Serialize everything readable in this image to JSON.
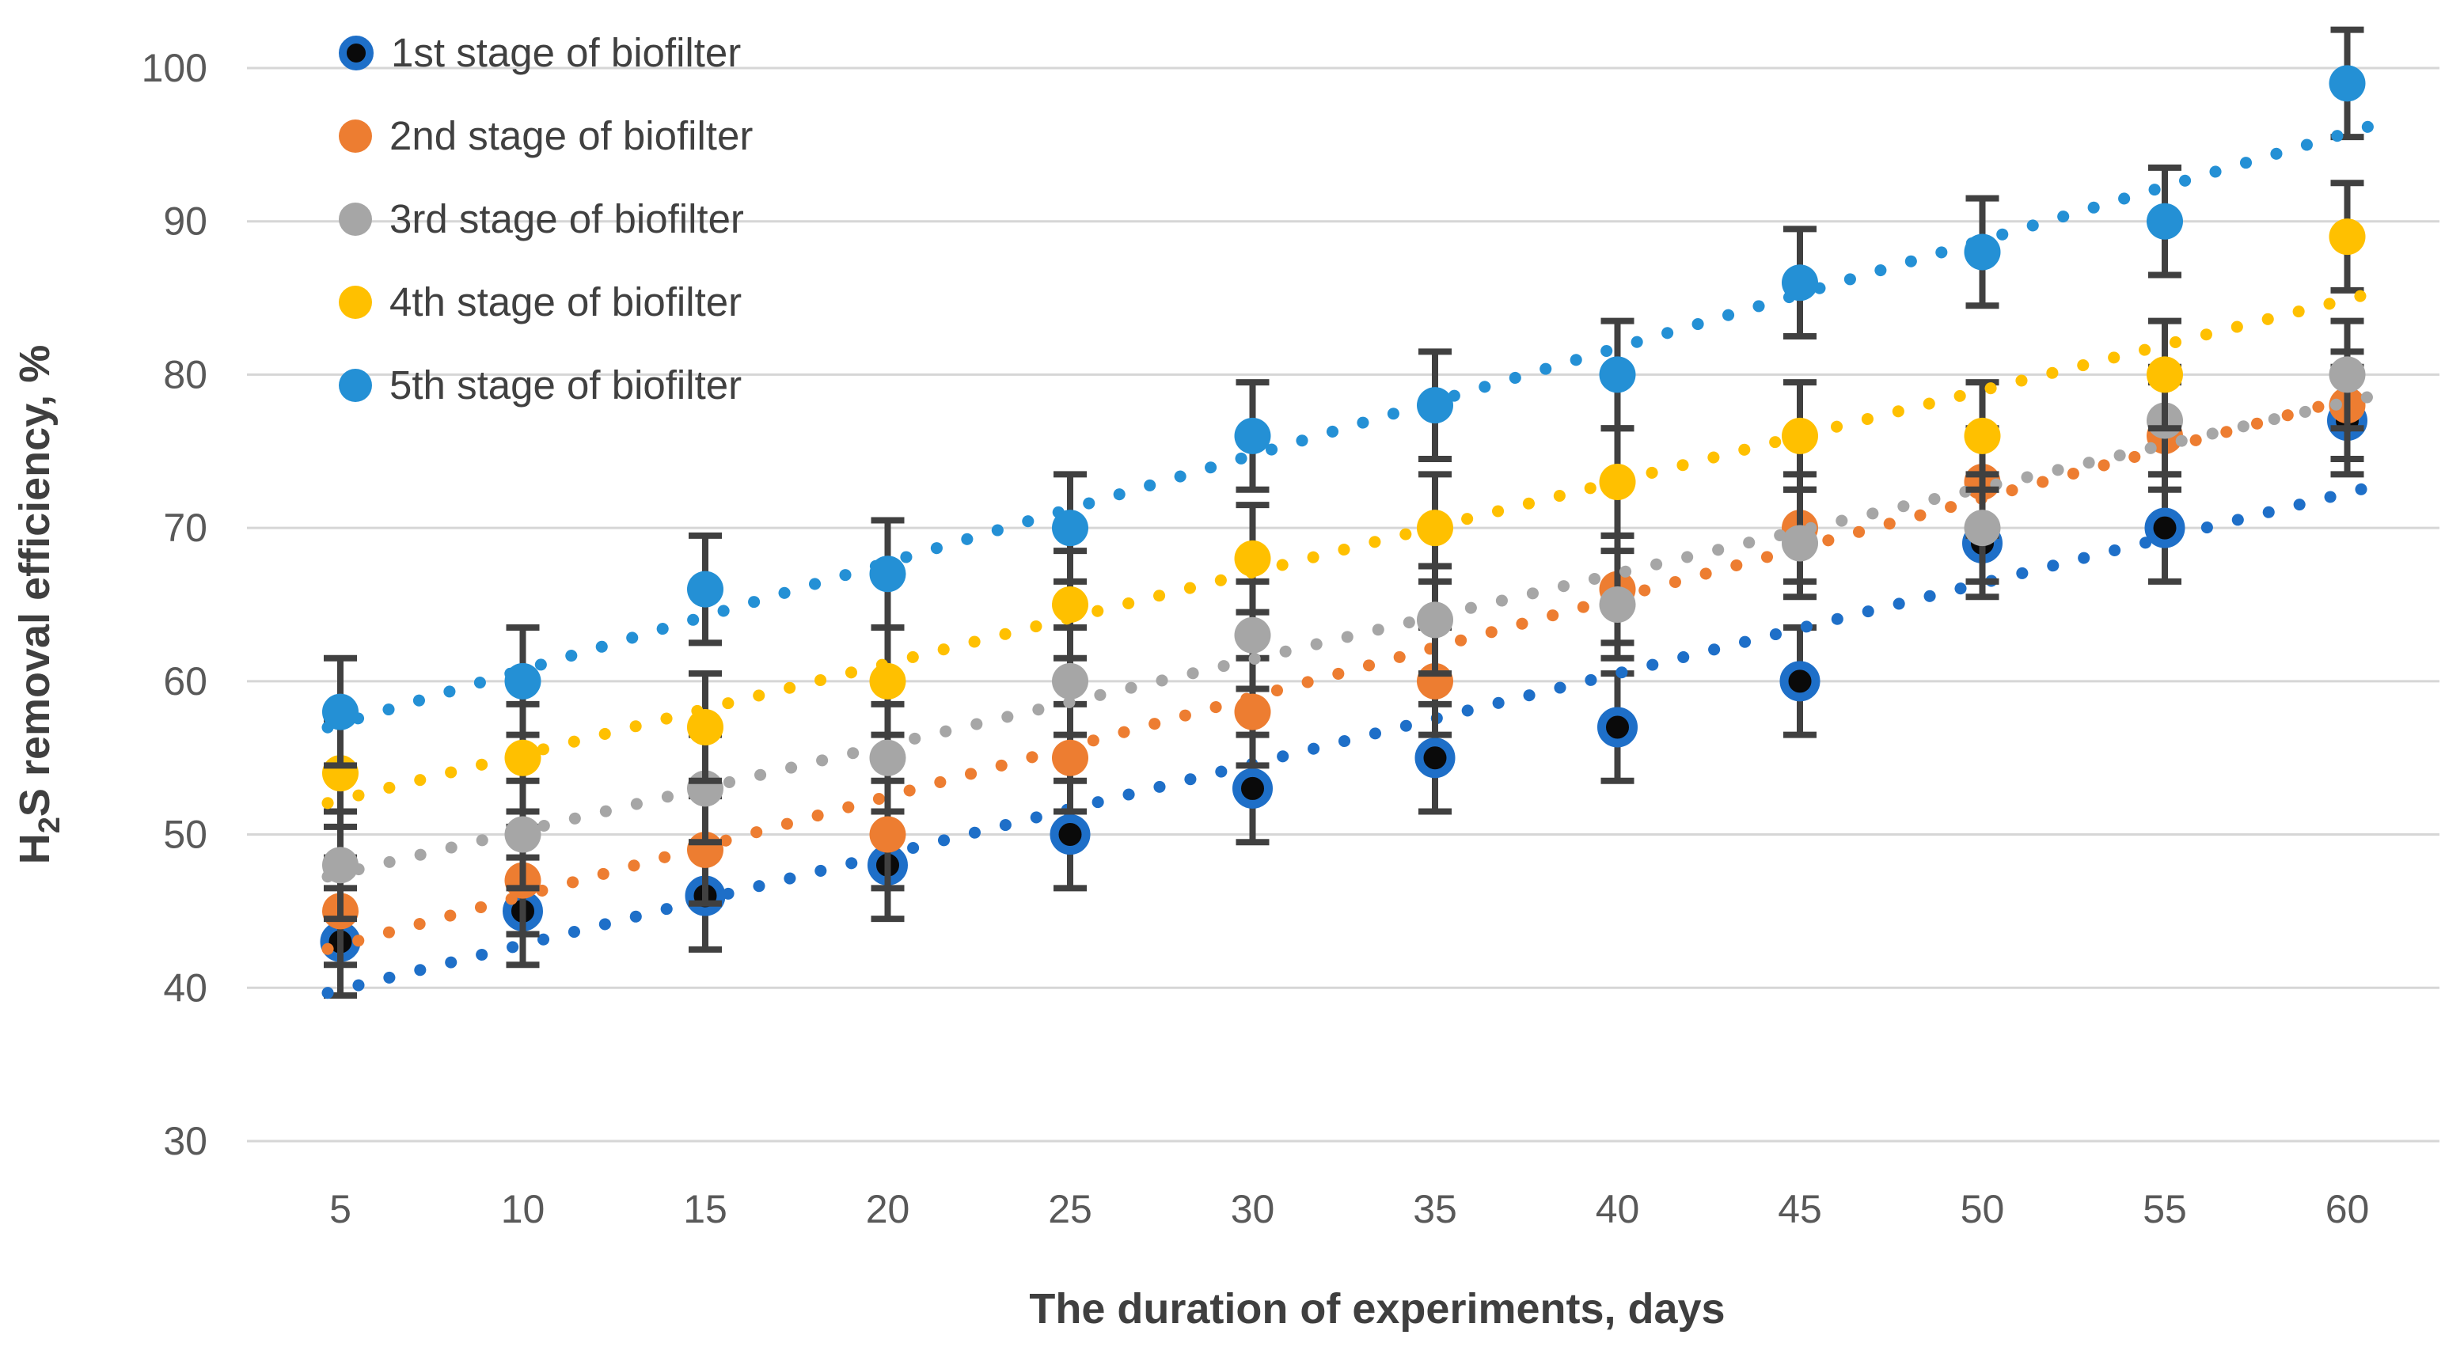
{
  "chart_data": {
    "type": "scatter",
    "title": "",
    "xlabel": "The duration of experiments, days",
    "ylabel_parts": [
      "H",
      "2",
      "S removal efficiency, %"
    ],
    "x": [
      5,
      10,
      15,
      20,
      25,
      30,
      35,
      40,
      45,
      50,
      55,
      60
    ],
    "x_tick_labels": [
      "5",
      "10",
      "15",
      "20",
      "25",
      "30",
      "35",
      "40",
      "45",
      "50",
      "55",
      "60"
    ],
    "y_ticks": [
      100,
      90,
      80,
      70,
      60,
      50,
      40,
      30
    ],
    "ylim": [
      30,
      100
    ],
    "xlim": [
      0,
      62
    ],
    "grid": true,
    "legend_position": "top-left-inside",
    "error_bar_value": 3.5,
    "series": [
      {
        "name": "1st stage of biofilter",
        "marker_color": "#0a0a0a",
        "marker_ring_color": "#1e6fc8",
        "trend_color": "#1e6fc8",
        "values": [
          43,
          45,
          46,
          48,
          50,
          53,
          55,
          57,
          60,
          69,
          70,
          77
        ],
        "trendline": "linear-dotted"
      },
      {
        "name": "2nd stage of biofilter",
        "marker_color": "#ed7d31",
        "trend_color": "#ed7d31",
        "values": [
          45,
          47,
          49,
          50,
          55,
          58,
          60,
          66,
          70,
          73,
          76,
          78
        ],
        "trendline": "linear-dotted"
      },
      {
        "name": "3rd stage of biofilter",
        "marker_color": "#a6a6a6",
        "trend_color": "#a6a6a6",
        "values": [
          48,
          50,
          53,
          55,
          60,
          63,
          64,
          65,
          69,
          70,
          77,
          80
        ],
        "trendline": "linear-dotted"
      },
      {
        "name": "4th stage of biofilter",
        "marker_color": "#ffc000",
        "trend_color": "#ffc000",
        "values": [
          54,
          55,
          57,
          60,
          65,
          68,
          70,
          73,
          76,
          76,
          80,
          89
        ],
        "trendline": "linear-dotted"
      },
      {
        "name": "5th stage of biofilter",
        "marker_color": "#2490d5",
        "trend_color": "#2490d5",
        "values": [
          58,
          60,
          66,
          67,
          70,
          76,
          78,
          80,
          86,
          88,
          90,
          99
        ],
        "trendline": "linear-dotted"
      }
    ],
    "style": {
      "grid_color": "#d6d6d6",
      "error_bar_color": "#404040",
      "tick_color": "#595959",
      "background": "#ffffff"
    }
  }
}
